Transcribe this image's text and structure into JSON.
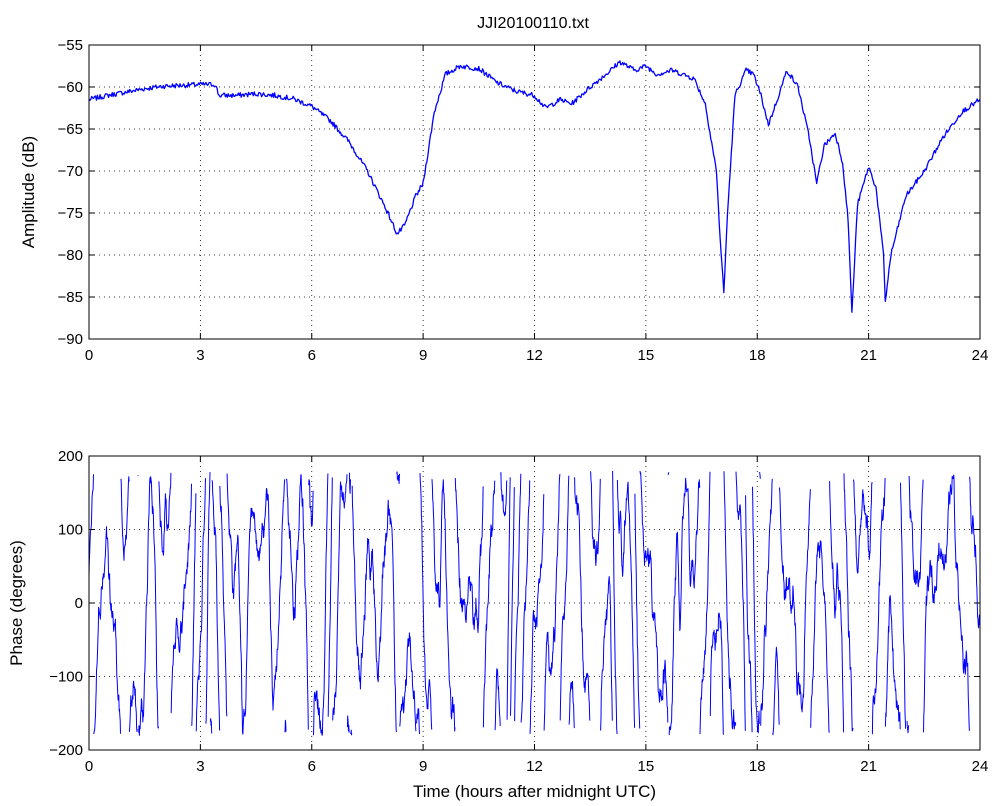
{
  "figure": {
    "title": "JJI20100110.txt",
    "line_color": "#0000ff"
  },
  "chart_data": [
    {
      "type": "line",
      "title": "JJI20100110.txt",
      "xlabel": "",
      "ylabel": "Amplitude (dB)",
      "xlim": [
        0,
        24
      ],
      "ylim": [
        -90,
        -55
      ],
      "xticks": [
        0,
        3,
        6,
        9,
        12,
        15,
        18,
        21,
        24
      ],
      "yticks": [
        -90,
        -85,
        -80,
        -75,
        -70,
        -65,
        -60,
        -55
      ],
      "grid": true,
      "x": [
        0,
        0.5,
        1,
        1.5,
        2,
        2.5,
        3,
        3.4,
        3.5,
        4,
        4.5,
        5,
        5.5,
        6,
        6.5,
        7,
        7.5,
        8,
        8.3,
        8.5,
        8.8,
        9,
        9.3,
        9.6,
        10,
        10.5,
        11,
        11.5,
        12,
        12.3,
        12.7,
        13,
        13.5,
        14,
        14.3,
        14.7,
        15,
        15.3,
        15.7,
        16,
        16.3,
        16.6,
        16.9,
        17.0,
        17.1,
        17.2,
        17.4,
        17.7,
        17.9,
        18.1,
        18.3,
        18.5,
        18.8,
        19.1,
        19.4,
        19.6,
        19.8,
        20.1,
        20.3,
        20.45,
        20.55,
        20.7,
        21.0,
        21.2,
        21.4,
        21.45,
        21.6,
        22.0,
        22.5,
        23.0,
        23.5,
        24
      ],
      "y": [
        -61.5,
        -61,
        -60.6,
        -60.2,
        -59.9,
        -59.8,
        -59.7,
        -59.7,
        -61,
        -61,
        -60.8,
        -61,
        -61.4,
        -62.3,
        -64,
        -66.5,
        -70,
        -74.5,
        -77.5,
        -76.5,
        -73,
        -71.5,
        -63,
        -58.5,
        -57.5,
        -57.8,
        -59.5,
        -60.5,
        -61,
        -62.5,
        -61.5,
        -62,
        -60,
        -58.2,
        -57,
        -58,
        -57.5,
        -58.5,
        -58,
        -58.5,
        -59,
        -62,
        -70,
        -78,
        -84.5,
        -75,
        -61,
        -58,
        -58.5,
        -61,
        -64.5,
        -62,
        -58,
        -60,
        -66,
        -71.5,
        -67,
        -65.5,
        -69,
        -76,
        -87,
        -74,
        -69.5,
        -72,
        -80,
        -85.5,
        -80,
        -73,
        -70,
        -66,
        -63,
        -61.5
      ],
      "series": [
        {
          "name": "",
          "color": "#0000ff"
        }
      ]
    },
    {
      "type": "line",
      "title": "",
      "xlabel": "Time (hours after midnight UTC)",
      "ylabel": "Phase (degrees)",
      "xlim": [
        0,
        24
      ],
      "ylim": [
        -200,
        200
      ],
      "xticks": [
        0,
        3,
        6,
        9,
        12,
        15,
        18,
        21,
        24
      ],
      "yticks": [
        -200,
        -100,
        0,
        100,
        200
      ],
      "grid": true,
      "wrap_range": [
        -180,
        180
      ],
      "series": [
        {
          "name": "",
          "color": "#0000ff"
        }
      ]
    }
  ]
}
